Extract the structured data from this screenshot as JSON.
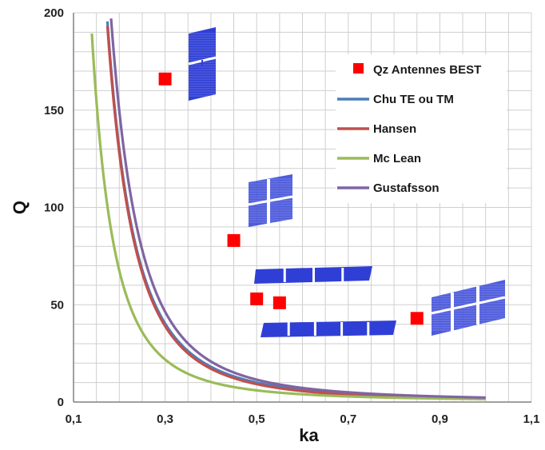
{
  "chart_data": {
    "type": "line",
    "xlabel": "ka",
    "ylabel": "Q",
    "xlim": [
      0.1,
      1.1
    ],
    "ylim": [
      0,
      200
    ],
    "x_ticks": [
      "0,1",
      "0,3",
      "0,5",
      "0,7",
      "0,9",
      "1,1"
    ],
    "y_ticks": [
      "0",
      "50",
      "100",
      "150",
      "200"
    ],
    "grid": true,
    "legend_position": "top-right",
    "series": [
      {
        "name": "Qz Antennes BEST",
        "kind": "scatter",
        "marker": "square",
        "color": "#ff0000",
        "points": [
          [
            0.3,
            166
          ],
          [
            0.45,
            83
          ],
          [
            0.5,
            53
          ],
          [
            0.55,
            51
          ],
          [
            0.85,
            43
          ]
        ]
      },
      {
        "name": "Chu TE ou TM",
        "kind": "line",
        "color": "#4a7ebb",
        "formula": "chu",
        "x": [
          0.14,
          1.0
        ]
      },
      {
        "name": "Hansen",
        "kind": "line",
        "color": "#c0504d",
        "formula": "hansen",
        "x": [
          0.14,
          1.0
        ]
      },
      {
        "name": "Mc Lean",
        "kind": "line",
        "color": "#9bbb59",
        "formula": "mclean",
        "x": [
          0.14,
          1.0
        ]
      },
      {
        "name": "Gustafsson",
        "kind": "line",
        "color": "#8064a2",
        "formula": "gustafsson",
        "x": [
          0.14,
          1.0
        ]
      }
    ],
    "antenna_images": [
      {
        "name": "antenna-1",
        "near": [
          0.3,
          166
        ]
      },
      {
        "name": "antenna-2",
        "near": [
          0.45,
          83
        ]
      },
      {
        "name": "antenna-3",
        "near": [
          0.5,
          53
        ]
      },
      {
        "name": "antenna-4",
        "near": [
          0.55,
          51
        ]
      },
      {
        "name": "antenna-5",
        "near": [
          0.85,
          43
        ]
      }
    ]
  },
  "colors": {
    "antenna_fill": "#2f3fd6",
    "grid": "#cfcfcf"
  }
}
